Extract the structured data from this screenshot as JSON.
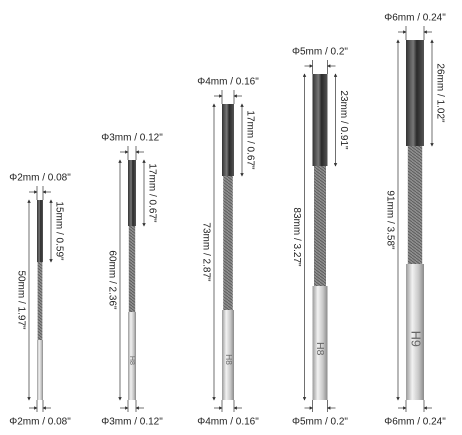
{
  "reamers": [
    {
      "top_label": "Φ2mm / 0.08\"",
      "flute_label": "15mm / 0.59\"",
      "length_label": "50mm / 1.97\"",
      "bottom_label": "Φ2mm / 0.08\""
    },
    {
      "top_label": "Φ3mm / 0.12\"",
      "flute_label": "17mm / 0.67\"",
      "length_label": "60mm / 2.36\"",
      "bottom_label": "Φ3mm / 0.12\"",
      "marking": "H8"
    },
    {
      "top_label": "Φ4mm / 0.16\"",
      "flute_label": "17mm / 0.67\"",
      "length_label": "73mm / 2.87\"",
      "bottom_label": "Φ4mm / 0.16\"",
      "marking": "H8"
    },
    {
      "top_label": "Φ5mm / 0.2\"",
      "flute_label": "23mm / 0.91\"",
      "length_label": "83mm / 3.27\"",
      "bottom_label": "Φ5mm / 0.2\"",
      "marking": "H8"
    },
    {
      "top_label": "Φ6mm / 0.24\"",
      "flute_label": "26mm / 1.02\"",
      "length_label": "91mm / 3.58\"",
      "bottom_label": "Φ6mm / 0.24\"",
      "marking": "H9"
    }
  ]
}
